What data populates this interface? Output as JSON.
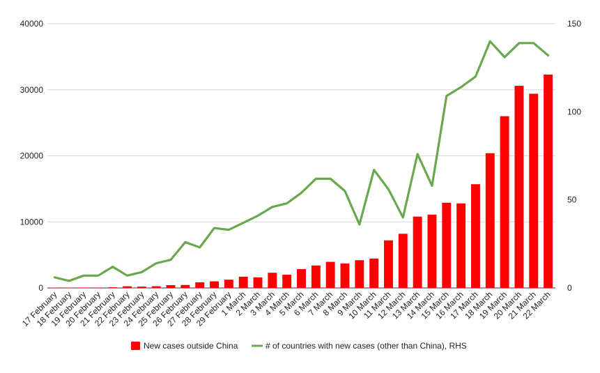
{
  "chart_data": {
    "type": "bar+line",
    "title": "",
    "xlabel": "",
    "ylabel": "",
    "y2label": "",
    "grid": true,
    "legend_position": "bottom",
    "ylim": [
      0,
      40000
    ],
    "y2lim": [
      0,
      150
    ],
    "yticks": [
      "0",
      "10000",
      "20000",
      "30000",
      "40000"
    ],
    "y2ticks": [
      "0",
      "50",
      "100",
      "150"
    ],
    "categories": [
      "17 February",
      "18 February",
      "19 February",
      "20 February",
      "21 February",
      "22 February",
      "23 February",
      "24 February",
      "25 February",
      "26 February",
      "27 February",
      "28 February",
      "29 February",
      "1 March",
      "2 March",
      "3 March",
      "4 March",
      "5 March",
      "6 March",
      "7 March",
      "8 March",
      "9 March",
      "10 March",
      "11 March",
      "12 March",
      "13 March",
      "14 March",
      "15 March",
      "16 March",
      "17 March",
      "18 March",
      "19 March",
      "20 March",
      "21 March",
      "22 March"
    ],
    "series": [
      {
        "name": "New cases outside China",
        "type": "bar",
        "axis": "left",
        "color": "#ff0000",
        "values": [
          50,
          40,
          60,
          60,
          100,
          250,
          200,
          260,
          420,
          450,
          850,
          1000,
          1250,
          1700,
          1600,
          2300,
          2000,
          2850,
          3400,
          3950,
          3700,
          4200,
          4450,
          7200,
          8200,
          10800,
          11100,
          12900,
          12800,
          15700,
          20400,
          26000,
          30600,
          29400,
          32300
        ]
      },
      {
        "name": "# of countries with new cases (other than China), RHS",
        "type": "line",
        "axis": "right",
        "color": "#6aa84f",
        "values": [
          6,
          4,
          7,
          7,
          12,
          7,
          9,
          14,
          16,
          26,
          23,
          34,
          33,
          37,
          41,
          46,
          48,
          54,
          62,
          62,
          55,
          36,
          67,
          56,
          40,
          76,
          58,
          109,
          114,
          120,
          140,
          131,
          139,
          139,
          132
        ]
      }
    ]
  }
}
